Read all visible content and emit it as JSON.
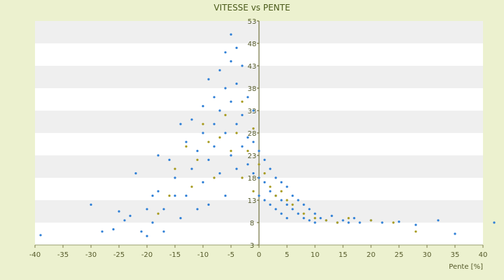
{
  "chart_data": {
    "type": "scatter",
    "title": "VITESSE vs PENTE",
    "xlabel": "Pente [%]",
    "ylabel": "",
    "xlim": [
      -40,
      40
    ],
    "ylim": [
      3,
      53
    ],
    "x_ticks": [
      -40,
      -35,
      -30,
      -25,
      -20,
      -15,
      -10,
      -5,
      0,
      5,
      10,
      15,
      20,
      25,
      30,
      35,
      40
    ],
    "y_ticks": [
      3,
      8,
      13,
      18,
      23,
      28,
      33,
      38,
      43,
      48,
      53
    ],
    "grid": "horizontal alternating bands",
    "colors": {
      "series_blue": "#2e7fd6",
      "series_olive": "#a69a1e",
      "plot_band_light": "#ffffff",
      "plot_band_dark": "#efefef",
      "background": "#ecf1cf"
    },
    "series": [
      {
        "color": "#2e7fd6",
        "points": [
          [
            -39,
            5.2
          ],
          [
            -30,
            12
          ],
          [
            -28,
            6
          ],
          [
            -26,
            6.5
          ],
          [
            -25,
            10.5
          ],
          [
            -24,
            8.5
          ],
          [
            -23,
            9.5
          ],
          [
            -22,
            19
          ],
          [
            -21,
            6
          ],
          [
            -20,
            5
          ],
          [
            -20,
            11
          ],
          [
            -19,
            14
          ],
          [
            -19,
            8
          ],
          [
            -18,
            15
          ],
          [
            -18,
            23
          ],
          [
            -17,
            11
          ],
          [
            -17,
            6
          ],
          [
            -16,
            22
          ],
          [
            -15,
            14
          ],
          [
            -15,
            18
          ],
          [
            -14,
            30
          ],
          [
            -14,
            9
          ],
          [
            -13,
            26
          ],
          [
            -13,
            14
          ],
          [
            -12,
            20
          ],
          [
            -12,
            31
          ],
          [
            -11,
            24
          ],
          [
            -11,
            11
          ],
          [
            -10,
            34
          ],
          [
            -10,
            28
          ],
          [
            -10,
            17
          ],
          [
            -9,
            40
          ],
          [
            -9,
            22
          ],
          [
            -9,
            12
          ],
          [
            -8,
            36
          ],
          [
            -8,
            30
          ],
          [
            -8,
            25
          ],
          [
            -7,
            42
          ],
          [
            -7,
            33
          ],
          [
            -7,
            19
          ],
          [
            -6,
            46
          ],
          [
            -6,
            38
          ],
          [
            -6,
            28
          ],
          [
            -6,
            14
          ],
          [
            -5,
            50
          ],
          [
            -5,
            44
          ],
          [
            -5,
            35
          ],
          [
            -5,
            23
          ],
          [
            -4,
            47
          ],
          [
            -4,
            39
          ],
          [
            -4,
            30
          ],
          [
            -4,
            20
          ],
          [
            -3,
            43
          ],
          [
            -3,
            32
          ],
          [
            -3,
            25
          ],
          [
            -2,
            36
          ],
          [
            -2,
            27
          ],
          [
            -2,
            21
          ],
          [
            -1,
            33
          ],
          [
            -1,
            26
          ],
          [
            -1,
            19
          ],
          [
            0,
            24
          ],
          [
            0,
            18
          ],
          [
            0,
            14
          ],
          [
            1,
            22
          ],
          [
            1,
            17
          ],
          [
            1,
            13
          ],
          [
            2,
            20
          ],
          [
            2,
            15
          ],
          [
            2,
            12
          ],
          [
            3,
            18
          ],
          [
            3,
            14
          ],
          [
            3,
            11
          ],
          [
            4,
            17
          ],
          [
            4,
            13
          ],
          [
            4,
            10
          ],
          [
            5,
            16
          ],
          [
            5,
            12
          ],
          [
            5,
            9
          ],
          [
            6,
            14
          ],
          [
            6,
            11
          ],
          [
            7,
            13
          ],
          [
            7,
            10
          ],
          [
            8,
            12
          ],
          [
            8,
            9
          ],
          [
            9,
            11
          ],
          [
            9,
            8.5
          ],
          [
            10,
            10
          ],
          [
            10,
            8
          ],
          [
            11,
            9
          ],
          [
            12,
            8.5
          ],
          [
            13,
            9.5
          ],
          [
            14,
            8
          ],
          [
            15,
            8.5
          ],
          [
            16,
            8
          ],
          [
            17,
            9
          ],
          [
            18,
            8
          ],
          [
            20,
            8.5
          ],
          [
            22,
            8
          ],
          [
            25,
            8.2
          ],
          [
            28,
            7.5
          ],
          [
            32,
            8.5
          ],
          [
            35,
            5.5
          ],
          [
            42,
            8
          ]
        ]
      },
      {
        "color": "#a69a1e",
        "points": [
          [
            -18,
            10
          ],
          [
            -16,
            14
          ],
          [
            -15,
            20
          ],
          [
            -13,
            25
          ],
          [
            -12,
            16
          ],
          [
            -11,
            22
          ],
          [
            -10,
            30
          ],
          [
            -9,
            26
          ],
          [
            -8,
            18
          ],
          [
            -7,
            27
          ],
          [
            -6,
            32
          ],
          [
            -5,
            24
          ],
          [
            -4,
            28
          ],
          [
            -3,
            35
          ],
          [
            -3,
            18
          ],
          [
            -2,
            24
          ],
          [
            -1,
            29
          ],
          [
            -1,
            15
          ],
          [
            0,
            21
          ],
          [
            1,
            19
          ],
          [
            2,
            16
          ],
          [
            3,
            14
          ],
          [
            4,
            15
          ],
          [
            5,
            13
          ],
          [
            6,
            12
          ],
          [
            8,
            10
          ],
          [
            10,
            9
          ],
          [
            12,
            8.5
          ],
          [
            14,
            8
          ],
          [
            16,
            9
          ],
          [
            20,
            8.5
          ],
          [
            24,
            8
          ],
          [
            28,
            6
          ]
        ]
      }
    ]
  }
}
